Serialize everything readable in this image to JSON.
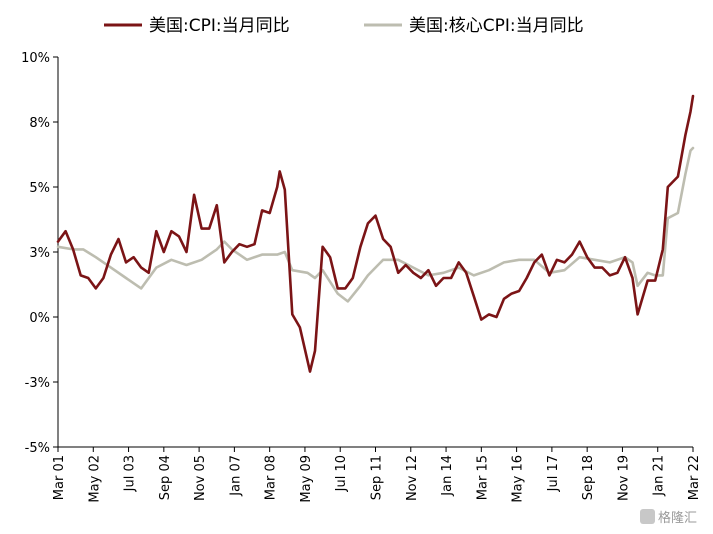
{
  "chart_data": {
    "type": "line",
    "title": "",
    "xlabel": "",
    "ylabel": "",
    "ylim": [
      -5,
      10
    ],
    "y_tick_labels": [
      "10%",
      "8%",
      "5%",
      "3%",
      "0%",
      "-3%",
      "-5%"
    ],
    "y_tick_values": [
      10,
      7.5,
      5,
      2.5,
      0,
      -2.5,
      -5
    ],
    "x_range": [
      "2001-03",
      "2022-03"
    ],
    "x_tick_labels": [
      "Mar 01",
      "May 02",
      "Jul 03",
      "Sep 04",
      "Nov 05",
      "Jan 07",
      "Mar 08",
      "May 09",
      "Jul 10",
      "Sep 11",
      "Nov 12",
      "Jan 14",
      "Mar 15",
      "May 16",
      "Jul 17",
      "Sep 18",
      "Nov 19",
      "Jan 21",
      "Mar 22"
    ],
    "x_tick_dates": [
      "2001-03",
      "2002-05",
      "2003-07",
      "2004-09",
      "2005-11",
      "2007-01",
      "2008-03",
      "2009-05",
      "2010-07",
      "2011-09",
      "2012-11",
      "2014-01",
      "2015-03",
      "2016-05",
      "2017-07",
      "2018-09",
      "2019-11",
      "2021-01",
      "2022-03"
    ],
    "legend_position": "top",
    "grid": false,
    "series": [
      {
        "name": "美国:CPI:当月同比",
        "color": "#7b1416",
        "points": [
          [
            "2001-03",
            2.9
          ],
          [
            "2001-06",
            3.3
          ],
          [
            "2001-09",
            2.6
          ],
          [
            "2001-12",
            1.6
          ],
          [
            "2002-03",
            1.5
          ],
          [
            "2002-06",
            1.1
          ],
          [
            "2002-09",
            1.5
          ],
          [
            "2002-12",
            2.4
          ],
          [
            "2003-03",
            3.0
          ],
          [
            "2003-06",
            2.1
          ],
          [
            "2003-09",
            2.3
          ],
          [
            "2003-12",
            1.9
          ],
          [
            "2004-03",
            1.7
          ],
          [
            "2004-06",
            3.3
          ],
          [
            "2004-09",
            2.5
          ],
          [
            "2004-12",
            3.3
          ],
          [
            "2005-03",
            3.1
          ],
          [
            "2005-06",
            2.5
          ],
          [
            "2005-09",
            4.7
          ],
          [
            "2005-12",
            3.4
          ],
          [
            "2006-03",
            3.4
          ],
          [
            "2006-06",
            4.3
          ],
          [
            "2006-09",
            2.1
          ],
          [
            "2006-12",
            2.5
          ],
          [
            "2007-03",
            2.8
          ],
          [
            "2007-06",
            2.7
          ],
          [
            "2007-09",
            2.8
          ],
          [
            "2007-12",
            4.1
          ],
          [
            "2008-03",
            4.0
          ],
          [
            "2008-06",
            5.0
          ],
          [
            "2008-07",
            5.6
          ],
          [
            "2008-09",
            4.9
          ],
          [
            "2008-12",
            0.1
          ],
          [
            "2009-03",
            -0.4
          ],
          [
            "2009-07",
            -2.1
          ],
          [
            "2009-09",
            -1.3
          ],
          [
            "2009-12",
            2.7
          ],
          [
            "2010-03",
            2.3
          ],
          [
            "2010-06",
            1.1
          ],
          [
            "2010-09",
            1.1
          ],
          [
            "2010-12",
            1.5
          ],
          [
            "2011-03",
            2.7
          ],
          [
            "2011-06",
            3.6
          ],
          [
            "2011-09",
            3.9
          ],
          [
            "2011-12",
            3.0
          ],
          [
            "2012-03",
            2.7
          ],
          [
            "2012-06",
            1.7
          ],
          [
            "2012-09",
            2.0
          ],
          [
            "2012-12",
            1.7
          ],
          [
            "2013-03",
            1.5
          ],
          [
            "2013-06",
            1.8
          ],
          [
            "2013-09",
            1.2
          ],
          [
            "2013-12",
            1.5
          ],
          [
            "2014-03",
            1.5
          ],
          [
            "2014-06",
            2.1
          ],
          [
            "2014-09",
            1.7
          ],
          [
            "2014-12",
            0.8
          ],
          [
            "2015-03",
            -0.1
          ],
          [
            "2015-06",
            0.1
          ],
          [
            "2015-09",
            0.0
          ],
          [
            "2015-12",
            0.7
          ],
          [
            "2016-03",
            0.9
          ],
          [
            "2016-06",
            1.0
          ],
          [
            "2016-09",
            1.5
          ],
          [
            "2016-12",
            2.1
          ],
          [
            "2017-03",
            2.4
          ],
          [
            "2017-06",
            1.6
          ],
          [
            "2017-09",
            2.2
          ],
          [
            "2017-12",
            2.1
          ],
          [
            "2018-03",
            2.4
          ],
          [
            "2018-06",
            2.9
          ],
          [
            "2018-09",
            2.3
          ],
          [
            "2018-12",
            1.9
          ],
          [
            "2019-03",
            1.9
          ],
          [
            "2019-06",
            1.6
          ],
          [
            "2019-09",
            1.7
          ],
          [
            "2019-12",
            2.3
          ],
          [
            "2020-03",
            1.5
          ],
          [
            "2020-05",
            0.1
          ],
          [
            "2020-09",
            1.4
          ],
          [
            "2020-12",
            1.4
          ],
          [
            "2021-03",
            2.6
          ],
          [
            "2021-05",
            5.0
          ],
          [
            "2021-09",
            5.4
          ],
          [
            "2021-12",
            7.0
          ],
          [
            "2022-02",
            7.9
          ],
          [
            "2022-03",
            8.5
          ]
        ]
      },
      {
        "name": "美国:核心CPI:当月同比",
        "color": "#bdbdb0",
        "points": [
          [
            "2001-03",
            2.7
          ],
          [
            "2001-09",
            2.6
          ],
          [
            "2002-01",
            2.6
          ],
          [
            "2002-06",
            2.3
          ],
          [
            "2002-12",
            1.9
          ],
          [
            "2003-06",
            1.5
          ],
          [
            "2003-12",
            1.1
          ],
          [
            "2004-06",
            1.9
          ],
          [
            "2004-12",
            2.2
          ],
          [
            "2005-06",
            2.0
          ],
          [
            "2005-12",
            2.2
          ],
          [
            "2006-06",
            2.6
          ],
          [
            "2006-09",
            2.9
          ],
          [
            "2006-12",
            2.6
          ],
          [
            "2007-06",
            2.2
          ],
          [
            "2007-12",
            2.4
          ],
          [
            "2008-06",
            2.4
          ],
          [
            "2008-09",
            2.5
          ],
          [
            "2008-12",
            1.8
          ],
          [
            "2009-06",
            1.7
          ],
          [
            "2009-09",
            1.5
          ],
          [
            "2009-12",
            1.8
          ],
          [
            "2010-06",
            0.9
          ],
          [
            "2010-10",
            0.6
          ],
          [
            "2011-03",
            1.2
          ],
          [
            "2011-06",
            1.6
          ],
          [
            "2011-12",
            2.2
          ],
          [
            "2012-06",
            2.2
          ],
          [
            "2012-12",
            1.9
          ],
          [
            "2013-06",
            1.6
          ],
          [
            "2013-12",
            1.7
          ],
          [
            "2014-06",
            1.9
          ],
          [
            "2014-12",
            1.6
          ],
          [
            "2015-06",
            1.8
          ],
          [
            "2015-12",
            2.1
          ],
          [
            "2016-06",
            2.2
          ],
          [
            "2016-12",
            2.2
          ],
          [
            "2017-06",
            1.7
          ],
          [
            "2017-12",
            1.8
          ],
          [
            "2018-06",
            2.3
          ],
          [
            "2018-12",
            2.2
          ],
          [
            "2019-06",
            2.1
          ],
          [
            "2019-12",
            2.3
          ],
          [
            "2020-03",
            2.1
          ],
          [
            "2020-05",
            1.2
          ],
          [
            "2020-09",
            1.7
          ],
          [
            "2020-12",
            1.6
          ],
          [
            "2021-03",
            1.6
          ],
          [
            "2021-05",
            3.8
          ],
          [
            "2021-09",
            4.0
          ],
          [
            "2021-12",
            5.5
          ],
          [
            "2022-02",
            6.4
          ],
          [
            "2022-03",
            6.5
          ]
        ]
      }
    ]
  },
  "watermark": "格隆汇"
}
